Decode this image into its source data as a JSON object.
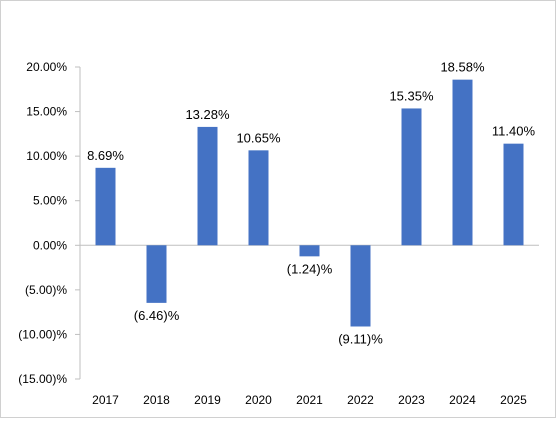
{
  "chart_data": {
    "type": "bar",
    "categories": [
      "2017",
      "2018",
      "2019",
      "2020",
      "2021",
      "2022",
      "2023",
      "2024",
      "2025"
    ],
    "values": [
      8.69,
      -6.46,
      13.28,
      10.65,
      -1.24,
      -9.11,
      15.35,
      18.58,
      11.4
    ],
    "data_labels": [
      "8.69%",
      "(6.46)%",
      "13.28%",
      "10.65%",
      "(1.24)%",
      "(9.11)%",
      "15.35%",
      "18.58%",
      "11.40%"
    ],
    "y_ticks": [
      20,
      15,
      10,
      5,
      0,
      -5,
      -10,
      -15
    ],
    "y_tick_labels": [
      "20.00%",
      "15.00%",
      "10.00%",
      "5.00%",
      "0.00%",
      "(5.00)%",
      "(10.00)%",
      "(15.00)%"
    ],
    "ylim": [
      -15,
      20
    ],
    "grid": false,
    "legend": "none",
    "bar_color": "#4472c4",
    "axis_color": "#bfbfbf"
  }
}
